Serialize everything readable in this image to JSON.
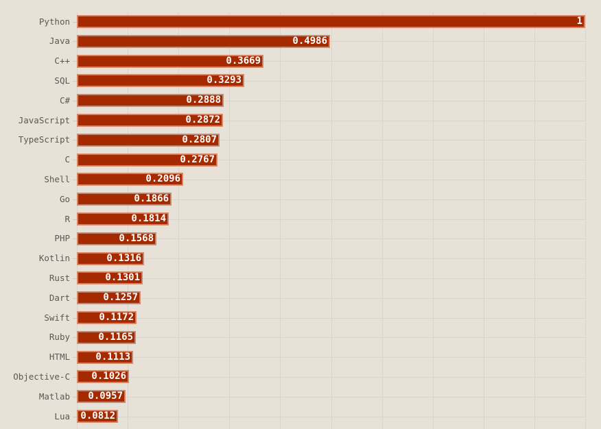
{
  "chart_data": {
    "type": "bar",
    "orientation": "horizontal",
    "title": "",
    "xlabel": "",
    "ylabel": "",
    "xlim": [
      0,
      1
    ],
    "grid": true,
    "bar_color": "#a62a00",
    "background": "#e8e1d7",
    "categories": [
      "Python",
      "Java",
      "C++",
      "SQL",
      "C#",
      "JavaScript",
      "TypeScript",
      "C",
      "Shell",
      "Go",
      "R",
      "PHP",
      "Kotlin",
      "Rust",
      "Dart",
      "Swift",
      "Ruby",
      "HTML",
      "Objective-C",
      "Matlab",
      "Lua"
    ],
    "values": [
      1,
      0.4986,
      0.3669,
      0.3293,
      0.2888,
      0.2872,
      0.2807,
      0.2767,
      0.2096,
      0.1866,
      0.1814,
      0.1568,
      0.1316,
      0.1301,
      0.1257,
      0.1172,
      0.1165,
      0.1113,
      0.1026,
      0.0957,
      0.0812
    ],
    "value_labels": [
      "1",
      "0.4986",
      "0.3669",
      "0.3293",
      "0.2888",
      "0.2872",
      "0.2807",
      "0.2767",
      "0.2096",
      "0.1866",
      "0.1814",
      "0.1568",
      "0.1316",
      "0.1301",
      "0.1257",
      "0.1172",
      "0.1165",
      "0.1113",
      "0.1026",
      "0.0957",
      "0.0812"
    ]
  }
}
